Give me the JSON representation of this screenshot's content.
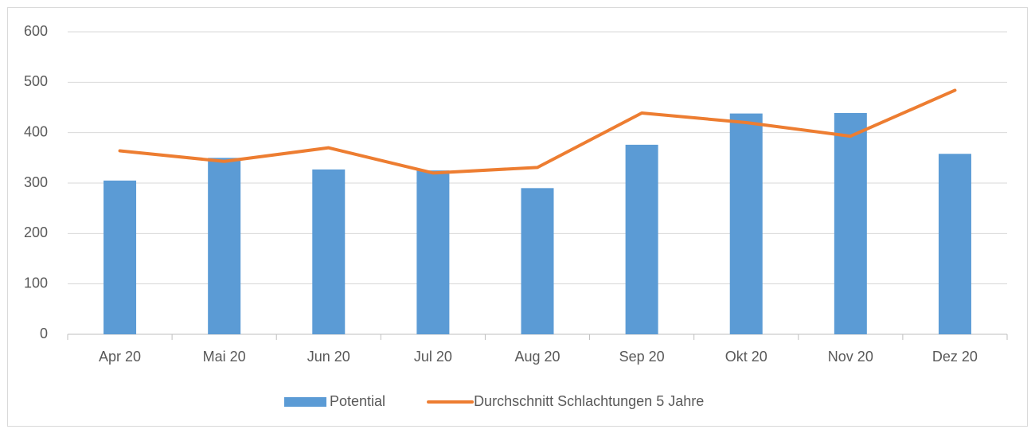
{
  "chart_data": {
    "type": "bar",
    "categories": [
      "Apr 20",
      "Mai 20",
      "Jun 20",
      "Jul 20",
      "Aug 20",
      "Sep 20",
      "Okt 20",
      "Nov 20",
      "Dez 20"
    ],
    "series": [
      {
        "name": "Potential",
        "type": "bar",
        "color": "#5b9bd5",
        "values": [
          305,
          350,
          327,
          325,
          290,
          376,
          438,
          439,
          358
        ]
      },
      {
        "name": "Durchschnitt Schlachtungen 5 Jahre",
        "type": "line",
        "color": "#ed7d31",
        "values": [
          364,
          343,
          370,
          320,
          331,
          439,
          420,
          393,
          484
        ]
      }
    ],
    "ylim": [
      0,
      600
    ],
    "yticks": [
      0,
      100,
      200,
      300,
      400,
      500,
      600
    ],
    "grid": true,
    "legend": "bottom"
  }
}
